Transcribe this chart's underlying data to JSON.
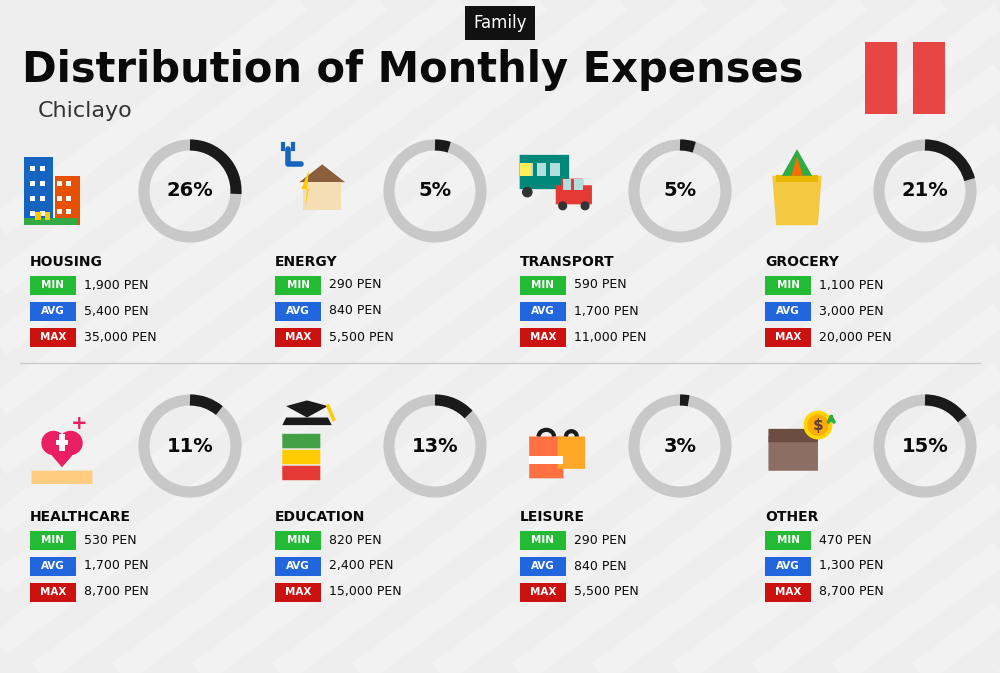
{
  "title": "Distribution of Monthly Expenses",
  "subtitle": "Family",
  "location": "Chiclayo",
  "bg_color": "#eeeeee",
  "categories": [
    {
      "name": "HOUSING",
      "pct": 26,
      "min": "1,900 PEN",
      "avg": "5,400 PEN",
      "max": "35,000 PEN",
      "col": 0,
      "row": 0
    },
    {
      "name": "ENERGY",
      "pct": 5,
      "min": "290 PEN",
      "avg": "840 PEN",
      "max": "5,500 PEN",
      "col": 1,
      "row": 0
    },
    {
      "name": "TRANSPORT",
      "pct": 5,
      "min": "590 PEN",
      "avg": "1,700 PEN",
      "max": "11,000 PEN",
      "col": 2,
      "row": 0
    },
    {
      "name": "GROCERY",
      "pct": 21,
      "min": "1,100 PEN",
      "avg": "3,000 PEN",
      "max": "20,000 PEN",
      "col": 3,
      "row": 0
    },
    {
      "name": "HEALTHCARE",
      "pct": 11,
      "min": "530 PEN",
      "avg": "1,700 PEN",
      "max": "8,700 PEN",
      "col": 0,
      "row": 1
    },
    {
      "name": "EDUCATION",
      "pct": 13,
      "min": "820 PEN",
      "avg": "2,400 PEN",
      "max": "15,000 PEN",
      "col": 1,
      "row": 1
    },
    {
      "name": "LEISURE",
      "pct": 3,
      "min": "290 PEN",
      "avg": "840 PEN",
      "max": "5,500 PEN",
      "col": 2,
      "row": 1
    },
    {
      "name": "OTHER",
      "pct": 15,
      "min": "470 PEN",
      "avg": "1,300 PEN",
      "max": "8,700 PEN",
      "col": 3,
      "row": 1
    }
  ],
  "min_color": "#22bb33",
  "avg_color": "#2266dd",
  "max_color": "#cc1111",
  "arc_filled": "#1a1a1a",
  "arc_bg": "#c8c8c8",
  "flag_color": "#e84545"
}
